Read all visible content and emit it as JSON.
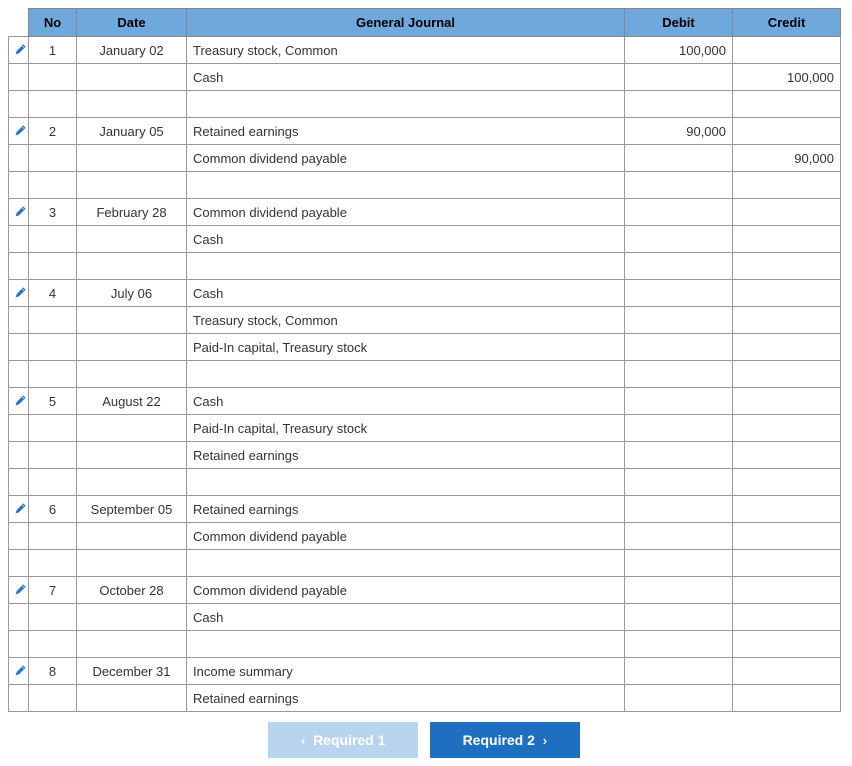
{
  "colors": {
    "header_bg": "#6fa8dc",
    "border": "#999999",
    "btn_prev_bg": "#b9d4ef",
    "btn_next_bg": "#1f6fc0",
    "pencil": "#2a74c9"
  },
  "headers": {
    "no": "No",
    "date": "Date",
    "gj": "General Journal",
    "debit": "Debit",
    "credit": "Credit"
  },
  "rows": [
    {
      "edit": true,
      "no": "1",
      "date": "January 02",
      "gj": "Treasury stock, Common",
      "indent": false,
      "debit": "100,000",
      "credit": ""
    },
    {
      "edit": false,
      "no": "",
      "date": "",
      "gj": "Cash",
      "indent": true,
      "debit": "",
      "credit": "100,000"
    },
    {
      "edit": false,
      "no": "",
      "date": "",
      "gj": "",
      "indent": false,
      "debit": "",
      "credit": ""
    },
    {
      "edit": true,
      "no": "2",
      "date": "January 05",
      "gj": "Retained earnings",
      "indent": false,
      "debit": "90,000",
      "credit": ""
    },
    {
      "edit": false,
      "no": "",
      "date": "",
      "gj": "Common dividend payable",
      "indent": true,
      "debit": "",
      "credit": "90,000"
    },
    {
      "edit": false,
      "no": "",
      "date": "",
      "gj": "",
      "indent": false,
      "debit": "",
      "credit": ""
    },
    {
      "edit": true,
      "no": "3",
      "date": "February 28",
      "gj": "Common dividend payable",
      "indent": false,
      "debit": "",
      "credit": ""
    },
    {
      "edit": false,
      "no": "",
      "date": "",
      "gj": "Cash",
      "indent": false,
      "debit": "",
      "credit": ""
    },
    {
      "edit": false,
      "no": "",
      "date": "",
      "gj": "",
      "indent": false,
      "debit": "",
      "credit": ""
    },
    {
      "edit": true,
      "no": "4",
      "date": "July 06",
      "gj": "Cash",
      "indent": false,
      "debit": "",
      "credit": ""
    },
    {
      "edit": false,
      "no": "",
      "date": "",
      "gj": "Treasury stock, Common",
      "indent": false,
      "debit": "",
      "credit": ""
    },
    {
      "edit": false,
      "no": "",
      "date": "",
      "gj": "Paid-In capital, Treasury stock",
      "indent": false,
      "debit": "",
      "credit": ""
    },
    {
      "edit": false,
      "no": "",
      "date": "",
      "gj": "",
      "indent": false,
      "debit": "",
      "credit": ""
    },
    {
      "edit": true,
      "no": "5",
      "date": "August 22",
      "gj": "Cash",
      "indent": false,
      "debit": "",
      "credit": ""
    },
    {
      "edit": false,
      "no": "",
      "date": "",
      "gj": "Paid-In capital, Treasury stock",
      "indent": false,
      "debit": "",
      "credit": ""
    },
    {
      "edit": false,
      "no": "",
      "date": "",
      "gj": "Retained earnings",
      "indent": false,
      "debit": "",
      "credit": ""
    },
    {
      "edit": false,
      "no": "",
      "date": "",
      "gj": "",
      "indent": false,
      "debit": "",
      "credit": ""
    },
    {
      "edit": true,
      "no": "6",
      "date": "September 05",
      "gj": "Retained earnings",
      "indent": false,
      "debit": "",
      "credit": ""
    },
    {
      "edit": false,
      "no": "",
      "date": "",
      "gj": "Common dividend payable",
      "indent": false,
      "debit": "",
      "credit": ""
    },
    {
      "edit": false,
      "no": "",
      "date": "",
      "gj": "",
      "indent": false,
      "debit": "",
      "credit": ""
    },
    {
      "edit": true,
      "no": "7",
      "date": "October 28",
      "gj": "Common dividend payable",
      "indent": false,
      "debit": "",
      "credit": ""
    },
    {
      "edit": false,
      "no": "",
      "date": "",
      "gj": "Cash",
      "indent": false,
      "debit": "",
      "credit": ""
    },
    {
      "edit": false,
      "no": "",
      "date": "",
      "gj": "",
      "indent": false,
      "debit": "",
      "credit": ""
    },
    {
      "edit": true,
      "no": "8",
      "date": "December 31",
      "gj": "Income summary",
      "indent": false,
      "debit": "",
      "credit": ""
    },
    {
      "edit": false,
      "no": "",
      "date": "",
      "gj": "Retained earnings",
      "indent": false,
      "debit": "",
      "credit": ""
    }
  ],
  "nav": {
    "prev_label": "Required 1",
    "next_label": "Required 2"
  }
}
